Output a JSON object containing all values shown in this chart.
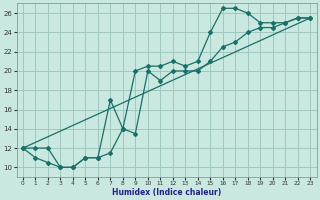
{
  "xlabel": "Humidex (Indice chaleur)",
  "bg_color": "#c8e8e0",
  "grid_color": "#a0c8c0",
  "line_color": "#1a7068",
  "xlim": [
    -0.5,
    23.5
  ],
  "ylim": [
    9,
    27
  ],
  "xticks": [
    0,
    1,
    2,
    3,
    4,
    5,
    6,
    7,
    8,
    9,
    10,
    11,
    12,
    13,
    14,
    15,
    16,
    17,
    18,
    19,
    20,
    21,
    22,
    23
  ],
  "yticks": [
    10,
    12,
    14,
    16,
    18,
    20,
    22,
    24,
    26
  ],
  "line1_x": [
    0,
    1,
    2,
    3,
    4,
    5,
    6,
    7,
    8,
    9,
    10,
    11,
    12,
    13,
    14,
    15,
    16,
    17,
    18,
    19,
    20,
    21,
    22,
    23
  ],
  "line1_y": [
    12,
    12,
    12,
    10,
    10,
    11,
    11,
    17,
    14,
    20,
    20.5,
    20.5,
    21,
    20.5,
    21,
    24,
    26.5,
    26.5,
    26,
    25,
    25,
    25,
    25.5,
    25.5
  ],
  "line2_x": [
    0,
    1,
    2,
    3,
    4,
    5,
    6,
    7,
    8,
    9,
    10,
    11,
    12,
    13,
    14,
    15,
    16,
    17,
    18,
    19,
    20,
    21,
    22,
    23
  ],
  "line2_y": [
    12,
    11,
    10.5,
    10,
    10,
    11,
    11,
    11.5,
    14,
    13.5,
    20,
    19,
    20,
    20,
    20,
    21,
    22.5,
    23,
    24,
    24.5,
    24.5,
    25,
    25.5,
    25.5
  ],
  "line3_x": [
    0,
    23
  ],
  "line3_y": [
    12,
    25.5
  ]
}
